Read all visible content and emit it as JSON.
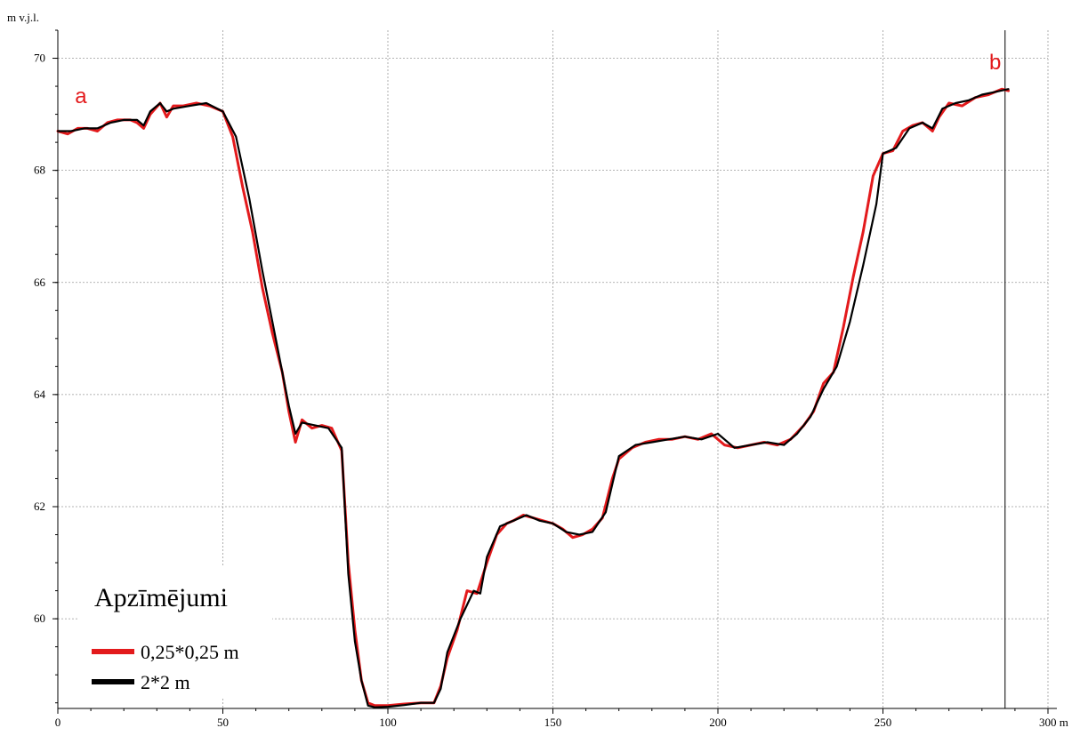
{
  "chart_data": {
    "type": "line",
    "xlim": [
      0,
      300
    ],
    "ylim": [
      58.4,
      70.5
    ],
    "y_unit": "m v.j.l.",
    "x_unit": "m",
    "x_ticks": [
      0,
      50,
      100,
      150,
      200,
      250,
      300
    ],
    "x_tick_labels": [
      "0",
      "50",
      "100",
      "150",
      "200",
      "250",
      "300 m"
    ],
    "y_ticks": [
      60,
      62,
      64,
      66,
      68,
      70
    ],
    "y_tick_labels": [
      "60",
      "62",
      "64",
      "66",
      "68",
      "70"
    ],
    "grid": true,
    "vertical_marker_x": 287,
    "markers": [
      {
        "label": "a",
        "x": 7,
        "y": 69.2
      },
      {
        "label": "b",
        "x": 284,
        "y": 69.8
      }
    ],
    "legend": {
      "title": "Apzīmējumi",
      "placement": "bottom-left",
      "items": [
        {
          "label": "0,25*0,25 m",
          "color": "#e31a1c"
        },
        {
          "label": "2*2 m",
          "color": "#000000"
        }
      ]
    },
    "series": [
      {
        "name": "0,25*0,25 m",
        "color": "#e31a1c",
        "x": [
          0,
          3,
          6,
          9,
          12,
          15,
          18,
          22,
          24,
          26,
          28,
          31,
          33,
          35,
          38,
          42,
          46,
          50,
          53,
          56,
          59,
          62,
          65,
          68,
          70,
          72,
          74,
          77,
          80,
          83,
          86,
          88,
          90,
          92,
          94,
          96,
          100,
          105,
          110,
          114,
          116,
          118,
          121,
          124,
          127,
          130,
          133,
          136,
          138,
          141,
          144,
          147,
          150,
          153,
          156,
          159,
          162,
          165,
          168,
          170,
          174,
          178,
          182,
          186,
          190,
          194,
          198,
          202,
          206,
          210,
          214,
          218,
          222,
          226,
          229,
          232,
          235,
          238,
          241,
          244,
          247,
          250,
          253,
          256,
          259,
          262,
          265,
          267,
          270,
          274,
          278,
          282,
          286,
          288
        ],
        "y": [
          68.7,
          68.65,
          68.75,
          68.75,
          68.7,
          68.85,
          68.9,
          68.9,
          68.85,
          68.75,
          69.0,
          69.2,
          68.95,
          69.15,
          69.15,
          69.2,
          69.15,
          69.05,
          68.6,
          67.7,
          66.9,
          65.9,
          65.1,
          64.4,
          63.7,
          63.15,
          63.55,
          63.4,
          63.45,
          63.4,
          63.0,
          61.0,
          59.8,
          58.9,
          58.5,
          58.45,
          58.45,
          58.48,
          58.5,
          58.5,
          58.8,
          59.3,
          59.8,
          60.5,
          60.45,
          61.0,
          61.5,
          61.7,
          61.75,
          61.85,
          61.8,
          61.75,
          61.7,
          61.6,
          61.45,
          61.5,
          61.6,
          61.8,
          62.5,
          62.85,
          63.05,
          63.15,
          63.2,
          63.2,
          63.25,
          63.2,
          63.3,
          63.1,
          63.05,
          63.1,
          63.15,
          63.1,
          63.2,
          63.45,
          63.7,
          64.2,
          64.4,
          65.2,
          66.1,
          66.9,
          67.9,
          68.3,
          68.35,
          68.7,
          68.8,
          68.85,
          68.7,
          68.95,
          69.2,
          69.15,
          69.3,
          69.35,
          69.45,
          69.42
        ]
      },
      {
        "name": "2*2 m",
        "color": "#000000",
        "x": [
          0,
          4,
          8,
          12,
          16,
          20,
          24,
          26,
          28,
          31,
          33,
          35,
          40,
          45,
          50,
          54,
          58,
          62,
          66,
          70,
          72,
          74,
          78,
          82,
          86,
          88,
          90,
          92,
          94,
          96,
          100,
          105,
          110,
          114,
          116,
          118,
          122,
          126,
          128,
          130,
          134,
          138,
          142,
          146,
          150,
          154,
          158,
          162,
          166,
          170,
          175,
          180,
          185,
          190,
          195,
          200,
          205,
          210,
          215,
          220,
          224,
          228,
          232,
          236,
          240,
          244,
          248,
          250,
          254,
          258,
          262,
          265,
          268,
          272,
          276,
          280,
          284,
          288
        ],
        "y": [
          68.7,
          68.7,
          68.75,
          68.75,
          68.85,
          68.9,
          68.9,
          68.8,
          69.05,
          69.2,
          69.05,
          69.1,
          69.15,
          69.2,
          69.05,
          68.6,
          67.5,
          66.2,
          65.0,
          63.8,
          63.3,
          63.5,
          63.45,
          63.4,
          63.05,
          60.8,
          59.6,
          58.9,
          58.45,
          58.42,
          58.43,
          58.46,
          58.5,
          58.5,
          58.75,
          59.4,
          60.0,
          60.5,
          60.45,
          61.1,
          61.65,
          61.75,
          61.85,
          61.75,
          61.7,
          61.55,
          61.5,
          61.55,
          61.9,
          62.9,
          63.1,
          63.15,
          63.2,
          63.25,
          63.2,
          63.3,
          63.05,
          63.1,
          63.15,
          63.1,
          63.3,
          63.6,
          64.1,
          64.5,
          65.3,
          66.3,
          67.4,
          68.3,
          68.4,
          68.75,
          68.85,
          68.75,
          69.1,
          69.2,
          69.25,
          69.35,
          69.4,
          69.45
        ]
      }
    ]
  }
}
